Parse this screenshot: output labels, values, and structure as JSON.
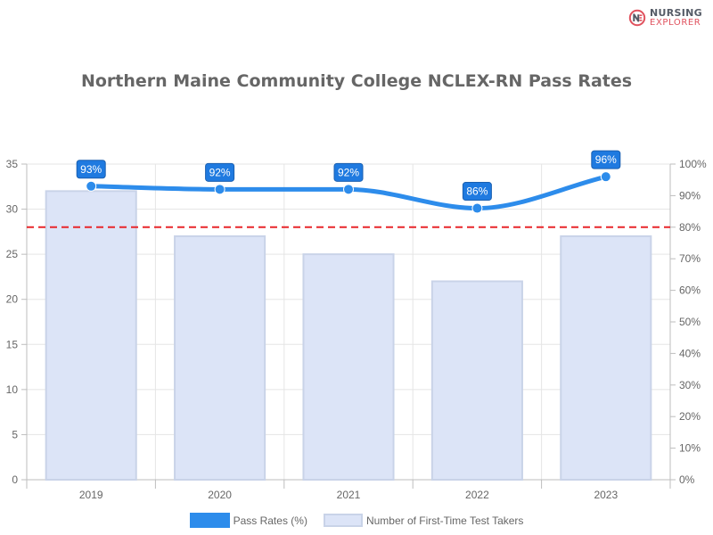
{
  "brand": {
    "line1": "NURSING",
    "line2": "EXPLORER",
    "icon": "nursing-explorer-logo-icon"
  },
  "chart_data": {
    "type": "bar",
    "title": "Northern Maine Community College NCLEX-RN Pass Rates",
    "categories": [
      "2019",
      "2020",
      "2021",
      "2022",
      "2023"
    ],
    "series": [
      {
        "name": "Number of First-Time Test Takers",
        "type": "bar",
        "axis": "left",
        "values": [
          32,
          27,
          25,
          22,
          27
        ],
        "color": "#dce4f7",
        "border_color": "#c9d3e8"
      },
      {
        "name": "Pass Rates (%)",
        "type": "line",
        "axis": "right",
        "smooth": true,
        "values": [
          93,
          92,
          92,
          86,
          96
        ],
        "data_labels": [
          "93%",
          "92%",
          "92%",
          "86%",
          "96%"
        ],
        "color": "#2d8ceb"
      }
    ],
    "left_axis": {
      "min": 0,
      "max": 35,
      "ticks": [
        "0",
        "5",
        "10",
        "15",
        "20",
        "25",
        "30",
        "35"
      ]
    },
    "right_axis": {
      "min": 0,
      "max": 100,
      "ticks": [
        "0%",
        "10%",
        "20%",
        "30%",
        "40%",
        "50%",
        "60%",
        "70%",
        "80%",
        "90%",
        "100%"
      ]
    },
    "reference_line": {
      "value": 80,
      "axis": "right",
      "style": "dashed",
      "color": "#e8262b"
    },
    "grid": true,
    "legend_position": "bottom"
  }
}
